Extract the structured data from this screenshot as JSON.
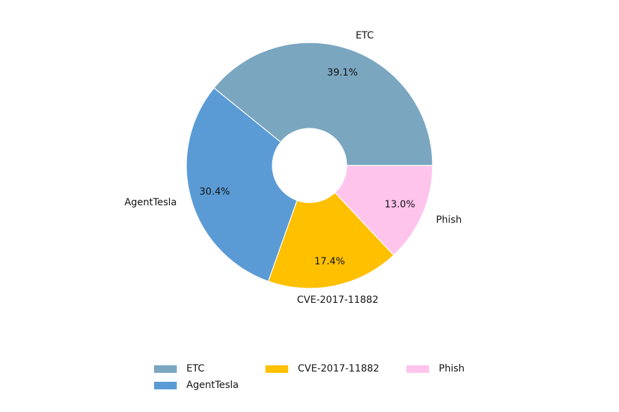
{
  "chart_data": {
    "type": "pie",
    "donut": true,
    "categories": [
      "ETC",
      "AgentTesla",
      "CVE-2017-11882",
      "Phish"
    ],
    "values": [
      39.1,
      30.4,
      17.4,
      13.0
    ],
    "value_labels": [
      "39.1%",
      "30.4%",
      "17.4%",
      "13.0%"
    ],
    "colors": [
      "#7aa6c0",
      "#5b9bd5",
      "#ffc000",
      "#ffc4ec"
    ],
    "start_angle_deg": 0,
    "direction": "counterclockwise",
    "legend_position": "bottom-center",
    "title": ""
  }
}
